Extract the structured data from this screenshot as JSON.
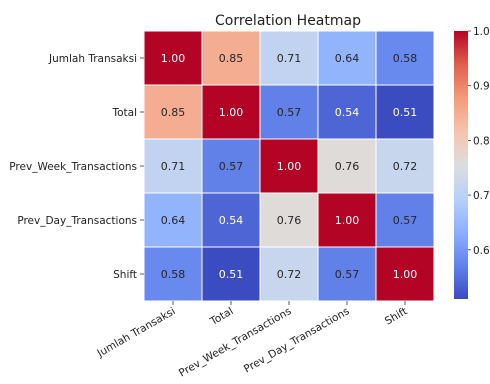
{
  "chart_data": {
    "type": "heatmap",
    "title": "Correlation Heatmap",
    "xlabel": "",
    "ylabel": "",
    "categories": [
      "Jumlah Transaksi",
      "Total",
      "Prev_Week_Transactions",
      "Prev_Day_Transactions",
      "Shift"
    ],
    "values": [
      [
        1.0,
        0.85,
        0.71,
        0.64,
        0.58
      ],
      [
        0.85,
        1.0,
        0.57,
        0.54,
        0.51
      ],
      [
        0.71,
        0.57,
        1.0,
        0.76,
        0.72
      ],
      [
        0.64,
        0.54,
        0.76,
        1.0,
        0.57
      ],
      [
        0.58,
        0.51,
        0.72,
        0.57,
        1.0
      ]
    ],
    "value_labels": [
      [
        "1.00",
        "0.85",
        "0.71",
        "0.64",
        "0.58"
      ],
      [
        "0.85",
        "1.00",
        "0.57",
        "0.54",
        "0.51"
      ],
      [
        "0.71",
        "0.57",
        "1.00",
        "0.76",
        "0.72"
      ],
      [
        "0.64",
        "0.54",
        "0.76",
        "1.00",
        "0.57"
      ],
      [
        "0.58",
        "0.51",
        "0.72",
        "0.57",
        "1.00"
      ]
    ],
    "colormap": "coolwarm",
    "colorbar": {
      "range": [
        0.51,
        1.0
      ],
      "ticks": [
        0.6,
        0.7,
        0.8,
        0.9,
        1.0
      ],
      "tick_labels": [
        "0.6",
        "0.7",
        "0.8",
        "0.9",
        "1.0"
      ]
    },
    "grid": true
  }
}
